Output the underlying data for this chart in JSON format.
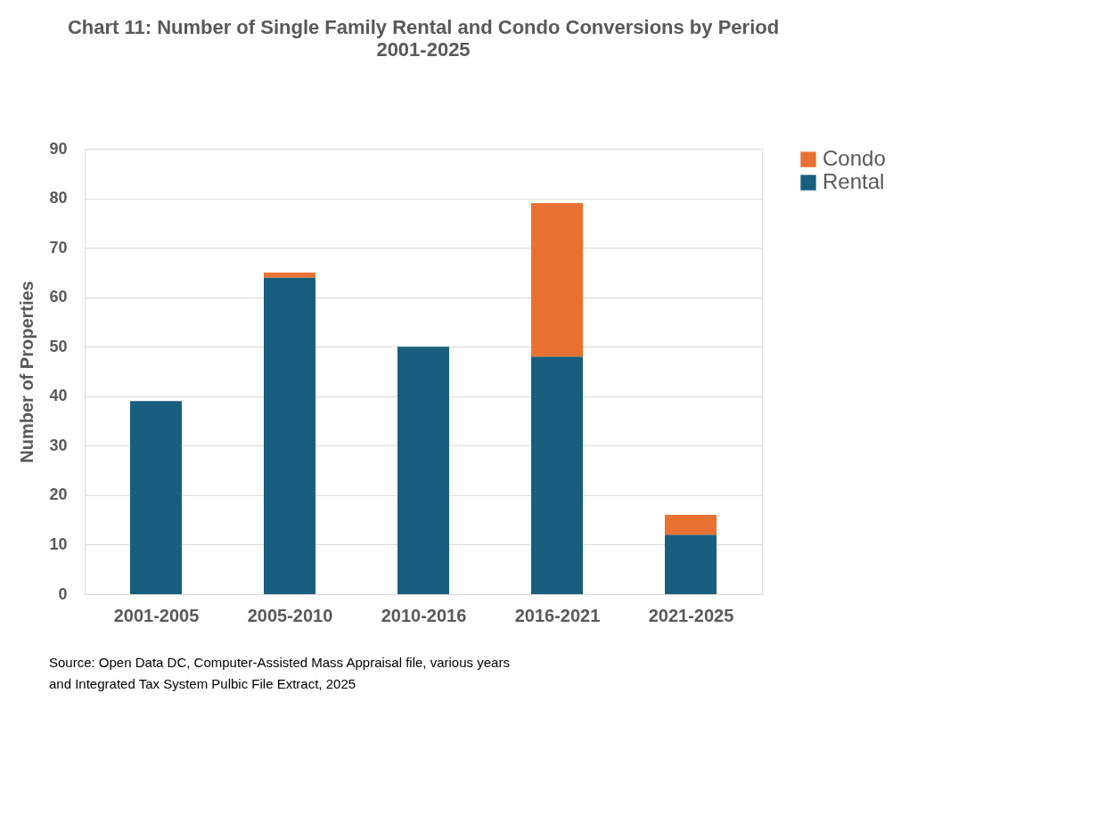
{
  "chart_data": {
    "type": "bar",
    "title": "Chart 11:  Number of Single Family Rental and Condo Conversions by Period",
    "subtitle": "2001-2025",
    "ylabel": "Number of Properties",
    "categories": [
      "2001-2005",
      "2005-2010",
      "2010-2016",
      "2016-2021",
      "2021-2025"
    ],
    "series": [
      {
        "name": "Rental",
        "color": "#175e7f",
        "values": [
          39,
          64,
          50,
          48,
          12
        ]
      },
      {
        "name": "Condo",
        "color": "#e97132",
        "values": [
          null,
          1,
          null,
          31,
          4
        ]
      }
    ],
    "stacked": true,
    "ylim": [
      0,
      90
    ],
    "yticks": [
      0,
      10,
      20,
      30,
      40,
      50,
      60,
      70,
      80,
      90
    ],
    "grid": "y",
    "legend": "right",
    "annotations": [
      "Source: Open Data DC, Computer-Assisted Mass Appraisal file, various years and Integrated Tax System Pulbic File Extract, 2025"
    ]
  }
}
